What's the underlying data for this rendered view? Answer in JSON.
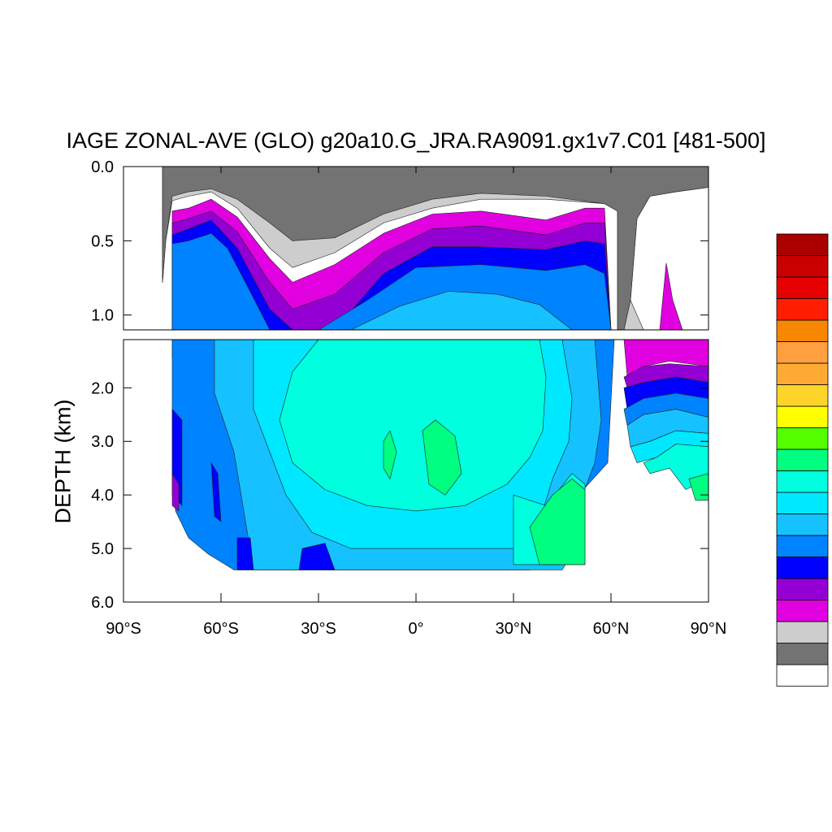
{
  "chart_data": {
    "type": "heatmap",
    "title": "IAGE ZONAL-AVE (GLO) g20a10.G_JRA.RA9091.gx1v7.C01 [481-500]",
    "xlabel": "",
    "ylabel": "DEPTH (km)",
    "x_ticks": [
      "90°S",
      "60°S",
      "30°S",
      "0°",
      "30°N",
      "60°N",
      "90°N"
    ],
    "x_tick_values": [
      -90,
      -60,
      -30,
      0,
      30,
      60,
      90
    ],
    "upper_panel": {
      "ylim": [
        0.0,
        1.1
      ],
      "y_ticks": [
        "0.0",
        "0.5",
        "1.0"
      ],
      "y_tick_values": [
        0.0,
        0.5,
        1.0
      ]
    },
    "lower_panel": {
      "ylim": [
        1.1,
        6.0
      ],
      "y_ticks": [
        "2.0",
        "3.0",
        "4.0",
        "5.0",
        "6.0"
      ],
      "y_tick_values": [
        2.0,
        3.0,
        4.0,
        5.0,
        6.0
      ]
    },
    "grid": false,
    "legend": "colorbar-right-unlabeled",
    "colorbar_colors": [
      "#ffffff",
      "#737373",
      "#cdcdcd",
      "#e100df",
      "#9400d4",
      "#0000ff",
      "#0083ff",
      "#16c1ff",
      "#00e8ff",
      "#00ffde",
      "#00ff80",
      "#55ff00",
      "#ffff00",
      "#ffd42a",
      "#ffaa33",
      "#ff9f3f",
      "#f78700",
      "#ff1f00",
      "#e60000",
      "#c80000",
      "#aa0000"
    ],
    "regions": [
      {
        "level": 2,
        "pts": [
          [
            -78,
            0
          ],
          [
            90,
            0
          ],
          [
            90,
            0.14
          ],
          [
            80,
            0.17
          ],
          [
            72,
            0.2
          ],
          [
            68,
            0.35
          ],
          [
            66,
            0.9
          ],
          [
            64,
            1.1
          ],
          [
            62,
            1.1
          ],
          [
            62,
            0.3
          ],
          [
            58,
            0.25
          ],
          [
            40,
            0.22
          ],
          [
            20,
            0.22
          ],
          [
            5,
            0.28
          ],
          [
            -10,
            0.38
          ],
          [
            -25,
            0.58
          ],
          [
            -38,
            0.68
          ],
          [
            -45,
            0.55
          ],
          [
            -55,
            0.28
          ],
          [
            -63,
            0.17
          ],
          [
            -70,
            0.2
          ],
          [
            -75,
            0.23
          ],
          [
            -77,
            0.5
          ],
          [
            -78,
            0.78
          ]
        ]
      },
      {
        "level": 1,
        "pts": [
          [
            -78,
            0
          ],
          [
            90,
            0
          ],
          [
            90,
            0.14
          ],
          [
            80,
            0.17
          ],
          [
            72,
            0.2
          ],
          [
            68,
            0.35
          ],
          [
            66,
            0.9
          ],
          [
            64,
            1.1
          ],
          [
            62,
            1.1
          ],
          [
            62,
            0.3
          ],
          [
            58,
            0.25
          ],
          [
            40,
            0.2
          ],
          [
            20,
            0.18
          ],
          [
            5,
            0.22
          ],
          [
            -10,
            0.32
          ],
          [
            -25,
            0.48
          ],
          [
            -38,
            0.5
          ],
          [
            -45,
            0.38
          ],
          [
            -55,
            0.22
          ],
          [
            -63,
            0.15
          ],
          [
            -70,
            0.17
          ],
          [
            -75,
            0.2
          ],
          [
            -77,
            0.5
          ],
          [
            -78,
            0.78
          ]
        ]
      },
      {
        "level": 3,
        "pts": [
          [
            -75,
            0.3
          ],
          [
            -70,
            0.28
          ],
          [
            -63,
            0.22
          ],
          [
            -55,
            0.34
          ],
          [
            -45,
            0.62
          ],
          [
            -38,
            0.78
          ],
          [
            -25,
            0.66
          ],
          [
            -10,
            0.45
          ],
          [
            5,
            0.32
          ],
          [
            20,
            0.3
          ],
          [
            40,
            0.36
          ],
          [
            52,
            0.28
          ],
          [
            58,
            0.28
          ],
          [
            60,
            1.1
          ],
          [
            -75,
            1.1
          ]
        ]
      },
      {
        "level": 4,
        "pts": [
          [
            -75,
            0.38
          ],
          [
            -70,
            0.35
          ],
          [
            -63,
            0.3
          ],
          [
            -55,
            0.44
          ],
          [
            -45,
            0.78
          ],
          [
            -38,
            0.96
          ],
          [
            -25,
            0.86
          ],
          [
            -10,
            0.58
          ],
          [
            5,
            0.42
          ],
          [
            20,
            0.4
          ],
          [
            40,
            0.46
          ],
          [
            52,
            0.38
          ],
          [
            58,
            0.38
          ],
          [
            60,
            1.1
          ],
          [
            -75,
            1.1
          ]
        ]
      },
      {
        "level": 5,
        "pts": [
          [
            -75,
            0.46
          ],
          [
            -70,
            0.42
          ],
          [
            -63,
            0.36
          ],
          [
            -55,
            0.55
          ],
          [
            -45,
            0.96
          ],
          [
            -38,
            1.1
          ],
          [
            -25,
            1.1
          ],
          [
            -10,
            0.72
          ],
          [
            5,
            0.54
          ],
          [
            20,
            0.54
          ],
          [
            40,
            0.56
          ],
          [
            52,
            0.5
          ],
          [
            58,
            0.52
          ],
          [
            60,
            1.1
          ],
          [
            -75,
            1.1
          ]
        ]
      },
      {
        "level": 6,
        "pts": [
          [
            -75,
            0.52
          ],
          [
            -70,
            0.5
          ],
          [
            -63,
            0.45
          ],
          [
            -58,
            0.55
          ],
          [
            -52,
            0.8
          ],
          [
            -45,
            1.1
          ],
          [
            -30,
            1.1
          ],
          [
            -15,
            0.9
          ],
          [
            0,
            0.68
          ],
          [
            20,
            0.66
          ],
          [
            40,
            0.7
          ],
          [
            52,
            0.66
          ],
          [
            58,
            0.72
          ],
          [
            60,
            1.1
          ],
          [
            -75,
            1.1
          ]
        ]
      },
      {
        "level": 7,
        "pts": [
          [
            -20,
            1.1
          ],
          [
            -5,
            0.94
          ],
          [
            10,
            0.84
          ],
          [
            25,
            0.86
          ],
          [
            38,
            0.93
          ],
          [
            48,
            1.1
          ]
        ]
      },
      {
        "level": 5,
        "pts": [
          [
            -75,
            1.1
          ],
          [
            -40,
            1.1
          ],
          [
            -45,
            1.3
          ],
          [
            -58,
            1.4
          ],
          [
            -68,
            1.55
          ],
          [
            -75,
            1.45
          ]
        ]
      },
      {
        "level": 6,
        "pts": [
          [
            -75,
            1.1
          ],
          [
            61,
            1.1
          ],
          [
            59,
            3.4
          ],
          [
            50,
            4.0
          ],
          [
            45,
            4.8
          ],
          [
            40,
            5.3
          ],
          [
            35,
            5.4
          ],
          [
            -56,
            5.4
          ],
          [
            -64,
            5.1
          ],
          [
            -70,
            4.8
          ],
          [
            -74,
            4.3
          ],
          [
            -75,
            3.6
          ]
        ]
      },
      {
        "level": 7,
        "pts": [
          [
            -62,
            1.1
          ],
          [
            55,
            1.1
          ],
          [
            57,
            2.6
          ],
          [
            55,
            3.4
          ],
          [
            50,
            4.2
          ],
          [
            48,
            5.1
          ],
          [
            45,
            5.4
          ],
          [
            -50,
            5.4
          ],
          [
            -53,
            4.3
          ],
          [
            -56,
            3.2
          ],
          [
            -62,
            2.1
          ]
        ]
      },
      {
        "level": 8,
        "pts": [
          [
            -50,
            1.1
          ],
          [
            45,
            1.1
          ],
          [
            48,
            2.2
          ],
          [
            47,
            3.0
          ],
          [
            42,
            3.7
          ],
          [
            38,
            4.5
          ],
          [
            30,
            5.0
          ],
          [
            -20,
            5.0
          ],
          [
            -32,
            4.7
          ],
          [
            -40,
            4.0
          ],
          [
            -45,
            3.2
          ],
          [
            -50,
            2.4
          ]
        ]
      },
      {
        "level": 9,
        "pts": [
          [
            -30,
            1.1
          ],
          [
            38,
            1.1
          ],
          [
            40,
            1.8
          ],
          [
            39,
            2.8
          ],
          [
            35,
            3.3
          ],
          [
            28,
            3.8
          ],
          [
            15,
            4.2
          ],
          [
            0,
            4.3
          ],
          [
            -15,
            4.2
          ],
          [
            -28,
            3.9
          ],
          [
            -38,
            3.4
          ],
          [
            -42,
            2.6
          ],
          [
            -38,
            1.7
          ]
        ]
      },
      {
        "level": 9,
        "pts": [
          [
            30,
            4.0
          ],
          [
            40,
            4.2
          ],
          [
            48,
            3.6
          ],
          [
            52,
            3.8
          ],
          [
            52,
            5.3
          ],
          [
            30,
            5.3
          ]
        ]
      },
      {
        "level": 10,
        "pts": [
          [
            35,
            4.6
          ],
          [
            42,
            4.0
          ],
          [
            48,
            3.7
          ],
          [
            52,
            3.9
          ],
          [
            52,
            5.3
          ],
          [
            38,
            5.3
          ]
        ]
      },
      {
        "level": 10,
        "pts": [
          [
            -10,
            3.0
          ],
          [
            -8,
            2.8
          ],
          [
            -6,
            3.2
          ],
          [
            -8,
            3.7
          ],
          [
            -10,
            3.5
          ]
        ]
      },
      {
        "level": 10,
        "pts": [
          [
            2,
            2.8
          ],
          [
            6,
            2.6
          ],
          [
            12,
            2.9
          ],
          [
            14,
            3.6
          ],
          [
            9,
            4.0
          ],
          [
            4,
            3.8
          ]
        ]
      },
      {
        "level": 5,
        "pts": [
          [
            -75,
            2.4
          ],
          [
            -72,
            2.6
          ],
          [
            -72,
            4.2
          ],
          [
            -75,
            4.0
          ]
        ]
      },
      {
        "level": 4,
        "pts": [
          [
            -75,
            3.6
          ],
          [
            -73,
            3.8
          ],
          [
            -73,
            4.3
          ],
          [
            -75,
            4.2
          ]
        ]
      },
      {
        "level": 5,
        "pts": [
          [
            -63,
            3.4
          ],
          [
            -61,
            3.6
          ],
          [
            -60,
            4.5
          ],
          [
            -62,
            4.4
          ]
        ]
      },
      {
        "level": 5,
        "pts": [
          [
            -55,
            4.8
          ],
          [
            -51,
            4.8
          ],
          [
            -50,
            5.4
          ],
          [
            -55,
            5.4
          ]
        ]
      },
      {
        "level": 5,
        "pts": [
          [
            -35,
            5.0
          ],
          [
            -28,
            4.9
          ],
          [
            -25,
            5.4
          ],
          [
            -36,
            5.4
          ]
        ]
      },
      {
        "level": 2,
        "pts": [
          [
            64,
            1.1
          ],
          [
            66,
            0.9
          ],
          [
            70,
            1.1
          ]
        ]
      },
      {
        "level": 3,
        "pts": [
          [
            65,
            1.1
          ],
          [
            90,
            1.1
          ],
          [
            90,
            1.1
          ],
          [
            88,
            1.1
          ]
        ]
      },
      {
        "level": 3,
        "pts": [
          [
            75,
            1.1
          ],
          [
            77,
            0.65
          ],
          [
            79,
            0.9
          ],
          [
            82,
            1.1
          ]
        ]
      },
      {
        "level": 3,
        "pts": [
          [
            64,
            1.1
          ],
          [
            90,
            1.1
          ],
          [
            90,
            1.6
          ],
          [
            78,
            1.5
          ],
          [
            70,
            1.6
          ],
          [
            65,
            1.8
          ]
        ]
      },
      {
        "level": 4,
        "pts": [
          [
            64,
            1.8
          ],
          [
            70,
            1.6
          ],
          [
            78,
            1.55
          ],
          [
            90,
            1.6
          ],
          [
            90,
            1.9
          ],
          [
            80,
            1.8
          ],
          [
            70,
            1.9
          ],
          [
            65,
            2.0
          ]
        ]
      },
      {
        "level": 5,
        "pts": [
          [
            64,
            2.0
          ],
          [
            70,
            1.9
          ],
          [
            80,
            1.8
          ],
          [
            90,
            1.9
          ],
          [
            90,
            2.2
          ],
          [
            80,
            2.1
          ],
          [
            70,
            2.2
          ],
          [
            65,
            2.4
          ]
        ]
      },
      {
        "level": 6,
        "pts": [
          [
            64,
            2.4
          ],
          [
            70,
            2.2
          ],
          [
            80,
            2.1
          ],
          [
            90,
            2.2
          ],
          [
            90,
            2.55
          ],
          [
            80,
            2.4
          ],
          [
            70,
            2.5
          ],
          [
            65,
            2.7
          ]
        ]
      },
      {
        "level": 7,
        "pts": [
          [
            65,
            2.7
          ],
          [
            70,
            2.5
          ],
          [
            80,
            2.4
          ],
          [
            90,
            2.55
          ],
          [
            90,
            2.85
          ],
          [
            80,
            2.8
          ],
          [
            72,
            3.0
          ],
          [
            66,
            3.1
          ]
        ]
      },
      {
        "level": 8,
        "pts": [
          [
            66,
            3.1
          ],
          [
            72,
            3.0
          ],
          [
            80,
            2.8
          ],
          [
            90,
            2.85
          ],
          [
            90,
            3.1
          ],
          [
            80,
            3.05
          ],
          [
            74,
            3.3
          ],
          [
            68,
            3.4
          ]
        ]
      },
      {
        "level": 9,
        "pts": [
          [
            70,
            3.4
          ],
          [
            74,
            3.3
          ],
          [
            80,
            3.05
          ],
          [
            90,
            3.1
          ],
          [
            90,
            3.7
          ],
          [
            83,
            3.9
          ],
          [
            78,
            3.5
          ],
          [
            72,
            3.6
          ]
        ]
      },
      {
        "level": 10,
        "pts": [
          [
            84,
            3.7
          ],
          [
            90,
            3.6
          ],
          [
            90,
            4.1
          ],
          [
            86,
            4.1
          ]
        ]
      }
    ]
  }
}
